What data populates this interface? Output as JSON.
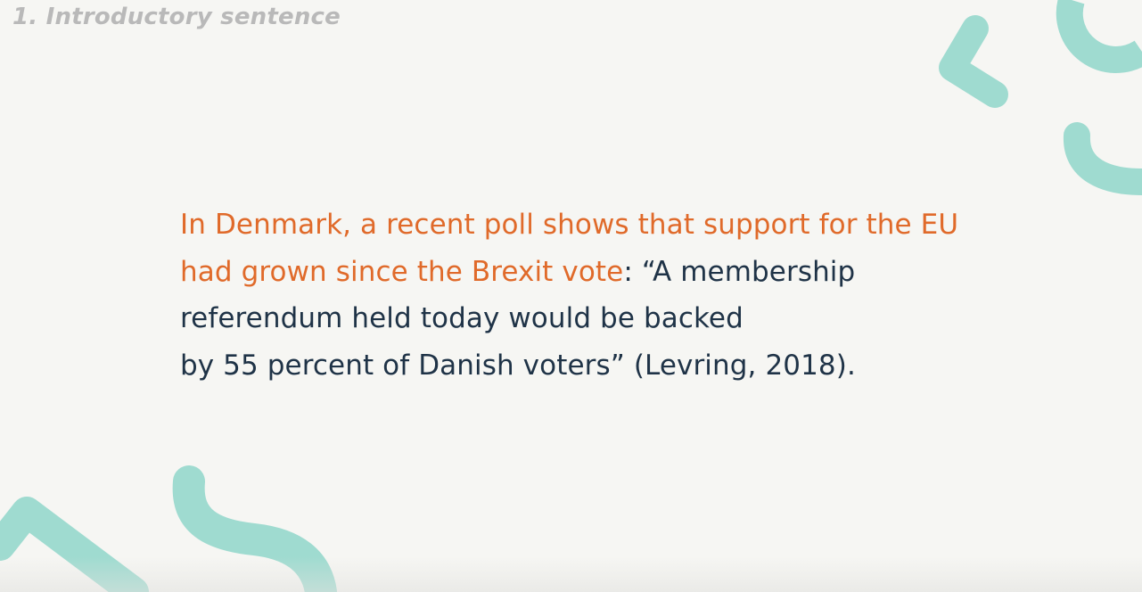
{
  "slide": {
    "label": "1. Introductory sentence"
  },
  "quote": {
    "line1_highlight": "In Denmark, a recent poll shows that support for the EU",
    "line2_highlight": "had grown since the Brexit vote",
    "line2_rest": ": “A membership",
    "line3": "referendum held today would be backed",
    "line4": "by 55 percent of Danish voters” (Levring, 2018)."
  },
  "colors": {
    "background": "#f6f6f3",
    "highlight": "#e06a2a",
    "text": "#1f3347",
    "label": "#b9b9b9",
    "decoration": "#9fdbd0"
  }
}
